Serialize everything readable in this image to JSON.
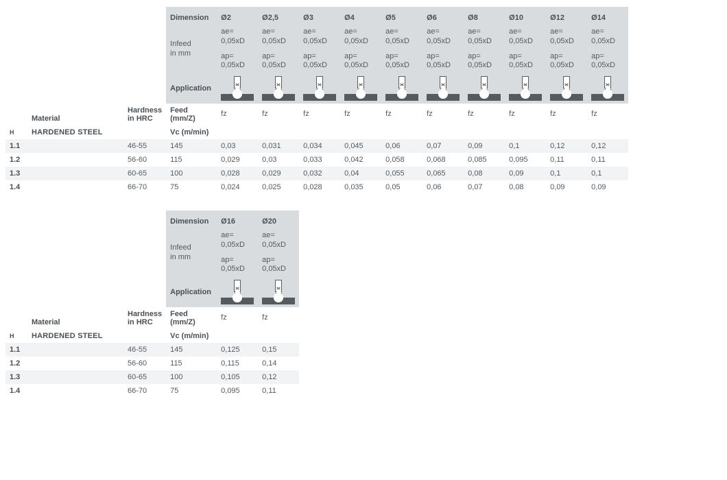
{
  "labels": {
    "dimension": "Dimension",
    "infeed": "Infeed",
    "in_mm": "in mm",
    "application": "Application",
    "material": "Material",
    "hardness": "Hardness",
    "in_hrc": "in HRC",
    "feed": "Feed (mm/Z)",
    "vc": "Vc (m/min)",
    "fz": "fz",
    "ae_line": "ae= 0,05xD",
    "ap_line": "ap= 0,05xD"
  },
  "section": {
    "code": "H",
    "name": "HARDENED STEEL"
  },
  "colors": {
    "header_bg": "#d9dcdf",
    "stripe_odd": "#f2f3f4",
    "stripe_even": "#ffffff",
    "text": "#555a5e",
    "text_bold": "#4a4f53",
    "icon": "#565b5f"
  },
  "font": {
    "family_estimate": "Arial/Helvetica sans-serif",
    "base_size_pt": 8,
    "header_size_pt": 8,
    "header_weight": 700
  },
  "tables": [
    {
      "diameters": [
        "Ø2",
        "Ø2,5",
        "Ø3",
        "Ø4",
        "Ø5",
        "Ø6",
        "Ø8",
        "Ø10",
        "Ø12",
        "Ø14"
      ],
      "rows": [
        {
          "code": "1.1",
          "hardness": "46-55",
          "vc": "145",
          "fz": [
            "0,03",
            "0,031",
            "0,034",
            "0,045",
            "0,06",
            "0,07",
            "0,09",
            "0,1",
            "0,12",
            "0,12"
          ]
        },
        {
          "code": "1.2",
          "hardness": "56-60",
          "vc": "115",
          "fz": [
            "0,029",
            "0,03",
            "0,033",
            "0,042",
            "0,058",
            "0,068",
            "0,085",
            "0,095",
            "0,11",
            "0,11"
          ]
        },
        {
          "code": "1.3",
          "hardness": "60-65",
          "vc": "100",
          "fz": [
            "0,028",
            "0,029",
            "0,032",
            "0,04",
            "0,055",
            "0,065",
            "0,08",
            "0,09",
            "0,1",
            "0,1"
          ]
        },
        {
          "code": "1.4",
          "hardness": "66-70",
          "vc": "75",
          "fz": [
            "0,024",
            "0,025",
            "0,028",
            "0,035",
            "0,05",
            "0,06",
            "0,07",
            "0,08",
            "0,09",
            "0,09"
          ]
        }
      ]
    },
    {
      "diameters": [
        "Ø16",
        "Ø20"
      ],
      "rows": [
        {
          "code": "1.1",
          "hardness": "46-55",
          "vc": "145",
          "fz": [
            "0,125",
            "0,15"
          ]
        },
        {
          "code": "1.2",
          "hardness": "56-60",
          "vc": "115",
          "fz": [
            "0,115",
            "0,14"
          ]
        },
        {
          "code": "1.3",
          "hardness": "60-65",
          "vc": "100",
          "fz": [
            "0,105",
            "0,12"
          ]
        },
        {
          "code": "1.4",
          "hardness": "66-70",
          "vc": "75",
          "fz": [
            "0,095",
            "0,11"
          ]
        }
      ]
    }
  ]
}
